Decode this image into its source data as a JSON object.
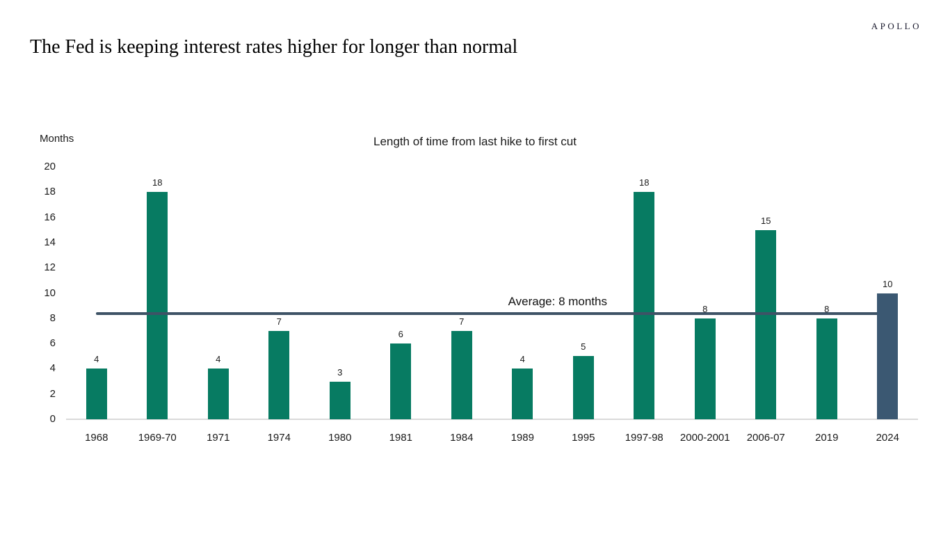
{
  "brand": {
    "logo": "APOLLO"
  },
  "page_title": "The Fed is keeping interest rates higher for longer than normal",
  "chart_data": {
    "type": "bar",
    "title": "Length of time from last hike to first cut",
    "ylabel": "Months",
    "xlabel": "",
    "ylim": [
      0,
      20
    ],
    "yticks": [
      0,
      2,
      4,
      6,
      8,
      10,
      12,
      14,
      16,
      18,
      20
    ],
    "grid": false,
    "legend": false,
    "categories": [
      "1968",
      "1969-70",
      "1971",
      "1974",
      "1980",
      "1981",
      "1984",
      "1989",
      "1995",
      "1997-98",
      "2000-2001",
      "2006-07",
      "2019",
      "2024"
    ],
    "values": [
      4,
      18,
      4,
      7,
      3,
      6,
      7,
      4,
      5,
      18,
      8,
      15,
      8,
      10
    ],
    "bar_color": "#077b62",
    "highlight_index": 13,
    "highlight_color": "#3b5872",
    "axis_color": "#d9d9d9",
    "average_line": {
      "value": 8.36,
      "label": "Average: 8 months",
      "color": "#3e5366"
    }
  }
}
